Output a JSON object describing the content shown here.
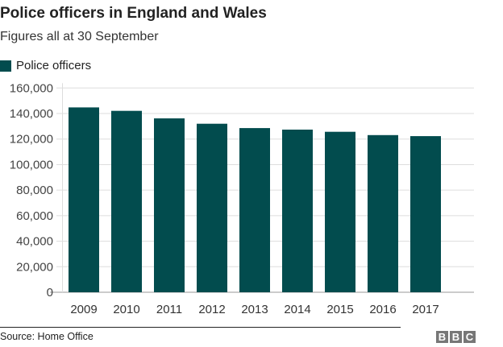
{
  "chart_data": {
    "type": "bar",
    "title": "Police officers in England and Wales",
    "subtitle": "Figures all at 30 September",
    "categories": [
      "2009",
      "2010",
      "2011",
      "2012",
      "2013",
      "2014",
      "2015",
      "2016",
      "2017"
    ],
    "series": [
      {
        "name": "Police officers",
        "values": [
          144800,
          142100,
          136200,
          132000,
          128600,
          127400,
          125700,
          123100,
          122300
        ],
        "color": "#024c4e"
      }
    ],
    "yticks": [
      0,
      20000,
      40000,
      60000,
      80000,
      100000,
      120000,
      140000,
      160000
    ],
    "ytick_labels": [
      "0",
      "20,000",
      "40,000",
      "60,000",
      "80,000",
      "100,000",
      "120,000",
      "140,000",
      "160,000"
    ],
    "ylim": [
      0,
      160000
    ],
    "grid": true,
    "legend": "top-left",
    "xlabel": "",
    "ylabel": ""
  },
  "footer": {
    "source": "Source: Home Office",
    "logo": "BBC"
  }
}
